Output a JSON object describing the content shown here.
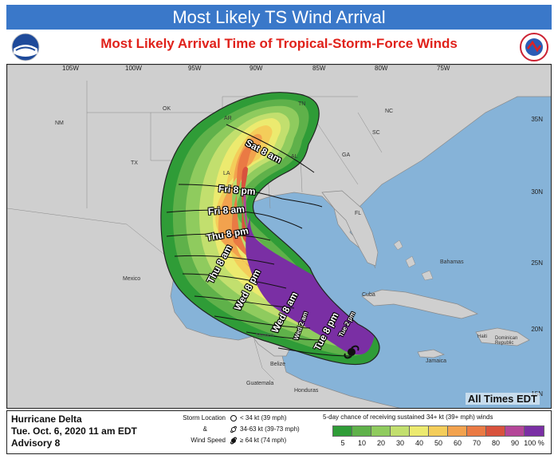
{
  "title": "Most Likely TS Wind Arrival",
  "subtitle": "Most Likely Arrival Time of Tropical-Storm-Force Winds",
  "logos": {
    "left": "NOAA",
    "right": "NATIONAL WEATHER SERVICE"
  },
  "colors": {
    "title_bar": "#3a78c9",
    "subtitle": "#e0211a",
    "ocean": "#86b3d8",
    "land": "#cfcfcf"
  },
  "longitudes": [
    "105W",
    "100W",
    "95W",
    "90W",
    "85W",
    "80W",
    "75W"
  ],
  "latitudes": [
    "35N",
    "30N",
    "25N",
    "20N",
    "15N"
  ],
  "places": {
    "nm": "NM",
    "ok": "OK",
    "tx": "TX",
    "ar": "AR",
    "tn": "TN",
    "nc": "NC",
    "sc": "SC",
    "ga": "GA",
    "al": "AL",
    "la": "LA",
    "fl": "FL",
    "mexico": "Mexico",
    "mexico2": "Mexico",
    "bahamas": "Bahamas",
    "cuba": "Cuba",
    "jamaica": "Jamaica",
    "dominican": "Dominican\nRepublic",
    "haiti": "Haiti",
    "belize": "Belize",
    "guatemala": "Guatemala",
    "honduras": "Honduras"
  },
  "arrival_times": [
    "Sat 8 am",
    "Fri 8 pm",
    "Fri 8 am",
    "Thu 8 pm",
    "Thu 8 am",
    "Wed 8 pm",
    "Wed 8 am",
    "Wed 2 am",
    "Tue 8 pm",
    "Tue 2 pm"
  ],
  "all_times": "All Times EDT",
  "storm": {
    "name": "Hurricane Delta",
    "date": "Tue. Oct. 6, 2020  11 am EDT",
    "advisory": "Advisory 8"
  },
  "wind_legend": {
    "label_top": "Storm Location",
    "label_mid": "&",
    "label_bot": "Wind Speed",
    "items": [
      "< 34 kt (39 mph)",
      "34-63 kt (39-73 mph)",
      "≥ 64 kt (74 mph)"
    ]
  },
  "probability": {
    "title": "5-day chance of receiving sustained 34+ kt (39+ mph) winds",
    "levels": [
      "5",
      "10",
      "20",
      "30",
      "40",
      "50",
      "60",
      "70",
      "80",
      "90",
      "100 %"
    ],
    "colors": [
      "#2f9c37",
      "#5fb14a",
      "#8fcb5e",
      "#c2df6e",
      "#ecea6f",
      "#f4cd5a",
      "#f2a24e",
      "#ea7a44",
      "#d8523d",
      "#b44698",
      "#7a2fa4"
    ]
  }
}
